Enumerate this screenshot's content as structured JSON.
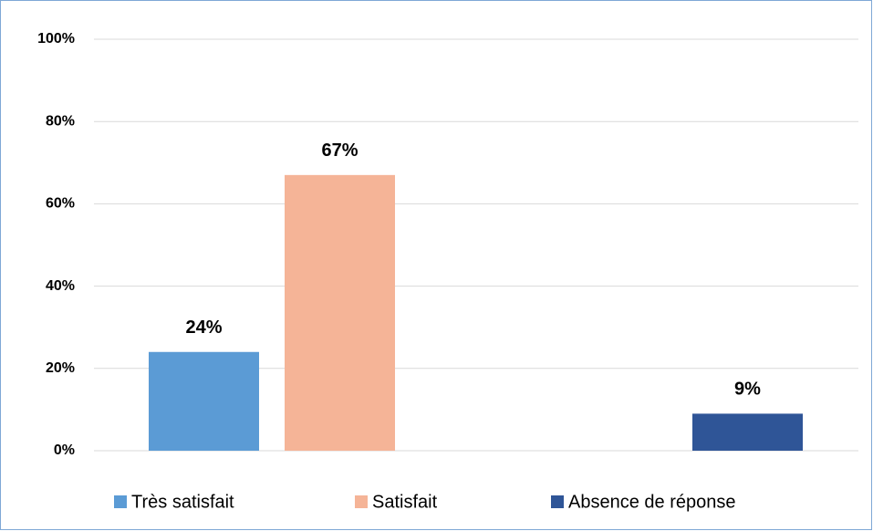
{
  "chart_data": {
    "type": "bar",
    "series": [
      {
        "name": "Très satisfait",
        "color": "#5b9bd5",
        "values": [
          24
        ],
        "value_labels": [
          "24%"
        ]
      },
      {
        "name": "Satisfait",
        "color": "#f5b497",
        "values": [
          67
        ],
        "value_labels": [
          "67%"
        ]
      },
      {
        "name": "Absence de réponse",
        "color": "#2f5597",
        "values": [
          9
        ],
        "value_labels": [
          "9%"
        ]
      }
    ],
    "ylim": [
      0,
      100
    ],
    "yticks": [
      {
        "value": 0,
        "label": "0%"
      },
      {
        "value": 20,
        "label": "20%"
      },
      {
        "value": 40,
        "label": "40%"
      },
      {
        "value": 60,
        "label": "60%"
      },
      {
        "value": 80,
        "label": "80%"
      },
      {
        "value": 100,
        "label": "100%"
      }
    ],
    "grid": true,
    "legend": "bottom"
  }
}
